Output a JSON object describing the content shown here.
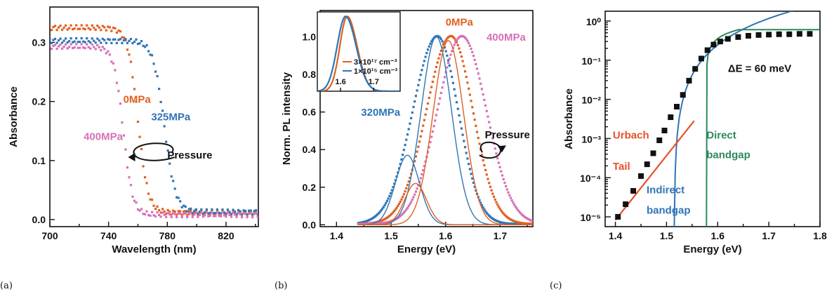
{
  "colors": {
    "zero": "#e06020",
    "p325": "#2f75b5",
    "p400": "#d670b8",
    "direct": "#2a8a5c",
    "urbach": "#e8502a",
    "black": "#111111"
  },
  "chart_data": [
    {
      "type": "line",
      "panel_label": "(a)",
      "xlabel": "Wavelength (nm)",
      "ylabel": "Absorbance",
      "xlim": [
        700,
        842
      ],
      "ylim": [
        -0.012,
        0.36
      ],
      "xticks": [
        700,
        740,
        780,
        820
      ],
      "xtick_labels": [
        "700",
        "740",
        "780",
        "820"
      ],
      "yticks": [
        0.0,
        0.1,
        0.2,
        0.3
      ],
      "ytick_labels": [
        "0.0",
        "0.1",
        "0.2",
        "0.3"
      ],
      "series": [
        {
          "name": "0MPa",
          "color": "#e06020",
          "plateau": 0.325,
          "edge_nm": 760,
          "width_nm": 3.4,
          "tail": 0.012
        },
        {
          "name": "325MPa",
          "color": "#2f75b5",
          "plateau": 0.303,
          "edge_nm": 778,
          "width_nm": 3.8,
          "tail": 0.013
        },
        {
          "name": "400MPa",
          "color": "#d670b8",
          "plateau": 0.293,
          "edge_nm": 750,
          "width_nm": 3.2,
          "tail": 0.008
        }
      ],
      "annotations": [
        {
          "text": "0MPa",
          "color": "#e06020",
          "x": 750,
          "y": 0.198
        },
        {
          "text": "325MPa",
          "color": "#2f75b5",
          "x": 769,
          "y": 0.168
        },
        {
          "text": "400MPa",
          "color": "#d670b8",
          "x": 723,
          "y": 0.135
        },
        {
          "text": "Pressure",
          "color": "#111111",
          "x": 780,
          "y": 0.103
        }
      ]
    },
    {
      "type": "line",
      "panel_label": "(b)",
      "xlabel": "Energy (eV)",
      "ylabel": "Norm. PL intensity",
      "xlim": [
        1.37,
        1.76
      ],
      "ylim": [
        -0.01,
        1.14
      ],
      "xticks": [
        1.4,
        1.5,
        1.6,
        1.7
      ],
      "xtick_labels": [
        "1.4",
        "1.5",
        "1.6",
        "1.7"
      ],
      "yticks": [
        0.0,
        0.2,
        0.4,
        0.6,
        0.8,
        1.0
      ],
      "ytick_labels": [
        "0.0",
        "0.2",
        "0.4",
        "0.6",
        "0.8",
        "1.0"
      ],
      "series": [
        {
          "name": "320MPa",
          "color": "#2f75b5",
          "peak_eV": 1.585,
          "sigma_left": 0.045,
          "sigma_right": 0.038
        },
        {
          "name": "0MPa",
          "color": "#e06020",
          "peak_eV": 1.61,
          "sigma_left": 0.045,
          "sigma_right": 0.04
        },
        {
          "name": "400MPa",
          "color": "#d670b8",
          "peak_eV": 1.63,
          "sigma_left": 0.045,
          "sigma_right": 0.045
        }
      ],
      "fits": [
        {
          "color": "#2f75b5",
          "center": 1.53,
          "amp": 0.37,
          "sigma": 0.022
        },
        {
          "color": "#2f75b5",
          "center": 1.583,
          "amp": 1.0,
          "sigma": 0.028
        },
        {
          "color": "#e06020",
          "center": 1.545,
          "amp": 0.22,
          "sigma": 0.02
        },
        {
          "color": "#e06020",
          "center": 1.605,
          "amp": 0.98,
          "sigma": 0.028
        }
      ],
      "annotations": [
        {
          "text": "0MPa",
          "color": "#e06020",
          "x": 1.6,
          "y": 1.06
        },
        {
          "text": "400MPa",
          "color": "#d670b8",
          "x": 1.675,
          "y": 0.98
        },
        {
          "text": "320MPa",
          "color": "#2f75b5",
          "x": 1.445,
          "y": 0.58
        },
        {
          "text": "Pressure",
          "color": "#111111",
          "x": 1.672,
          "y": 0.46
        }
      ],
      "inset": {
        "xlim": [
          1.53,
          1.78
        ],
        "ylim": [
          0,
          1.06
        ],
        "xtick_labels": [
          "1.6",
          "1.7"
        ],
        "series": [
          {
            "legend": "3×10¹⁷ cm⁻³",
            "color": "#e06020",
            "peak_eV": 1.62,
            "sigma_left": 0.022,
            "sigma_right": 0.03
          },
          {
            "legend": "1×10¹⁵ cm⁻³",
            "color": "#2f75b5",
            "peak_eV": 1.615,
            "sigma_left": 0.025,
            "sigma_right": 0.032
          }
        ]
      }
    },
    {
      "type": "scatter",
      "panel_label": "(c)",
      "xlabel": "Energy (eV)",
      "ylabel": "Absorbance",
      "yscale": "log",
      "xlim": [
        1.38,
        1.8
      ],
      "ylim_log10": [
        -5.25,
        0.25
      ],
      "xticks": [
        1.4,
        1.5,
        1.6,
        1.7,
        1.8
      ],
      "xtick_labels": [
        "1.4",
        "1.5",
        "1.6",
        "1.7",
        "1.8"
      ],
      "ytick_labels": [
        "10⁻⁵",
        "10⁻⁴",
        "10⁻³",
        "10⁻²",
        "10⁻¹",
        "10⁰"
      ],
      "data_points": [
        {
          "x": 1.405,
          "y": 1e-05
        },
        {
          "x": 1.42,
          "y": 2.1e-05
        },
        {
          "x": 1.435,
          "y": 4.6e-05
        },
        {
          "x": 1.45,
          "y": 0.00011
        },
        {
          "x": 1.462,
          "y": 0.00022
        },
        {
          "x": 1.474,
          "y": 0.00042
        },
        {
          "x": 1.486,
          "y": 0.0009
        },
        {
          "x": 1.496,
          "y": 0.0016
        },
        {
          "x": 1.508,
          "y": 0.0035
        },
        {
          "x": 1.52,
          "y": 0.0065
        },
        {
          "x": 1.532,
          "y": 0.013
        },
        {
          "x": 1.544,
          "y": 0.03
        },
        {
          "x": 1.556,
          "y": 0.06
        },
        {
          "x": 1.568,
          "y": 0.11
        },
        {
          "x": 1.58,
          "y": 0.18
        },
        {
          "x": 1.592,
          "y": 0.25
        },
        {
          "x": 1.605,
          "y": 0.3
        },
        {
          "x": 1.62,
          "y": 0.35
        },
        {
          "x": 1.64,
          "y": 0.39
        },
        {
          "x": 1.66,
          "y": 0.42
        },
        {
          "x": 1.68,
          "y": 0.44
        },
        {
          "x": 1.7,
          "y": 0.45
        },
        {
          "x": 1.72,
          "y": 0.46
        },
        {
          "x": 1.74,
          "y": 0.46
        },
        {
          "x": 1.76,
          "y": 0.47
        },
        {
          "x": 1.78,
          "y": 0.47
        }
      ],
      "annotations": [
        {
          "text": "ΔE = 60 meV",
          "color": "#111111",
          "x": 1.62,
          "y_log10": -1.3
        },
        {
          "text": "Urbach",
          "color": "#e8502a",
          "x": 1.395,
          "y_log10": -3.0
        },
        {
          "text": "Tail",
          "color": "#e8502a",
          "x": 1.395,
          "y_log10": -3.8
        },
        {
          "text": "Direct",
          "color": "#2a8a5c",
          "x": 1.578,
          "y_log10": -3.0
        },
        {
          "text": "bandgap",
          "color": "#2a8a5c",
          "x": 1.578,
          "y_log10": -3.5
        },
        {
          "text": "Indirect",
          "color": "#2f75b5",
          "x": 1.461,
          "y_log10": -4.4
        },
        {
          "text": "bandgap",
          "color": "#2f75b5",
          "x": 1.461,
          "y_log10": -4.92
        }
      ]
    }
  ]
}
